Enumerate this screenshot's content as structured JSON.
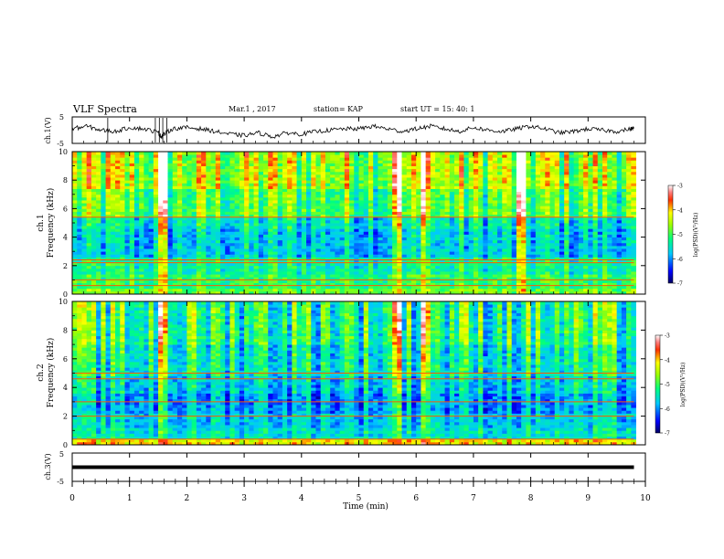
{
  "header": {
    "title": "VLF Spectra",
    "date": "Mar.1 , 2017",
    "station": "station= KAP",
    "start_ut": "start UT =  15: 40: 1"
  },
  "chart_data": [
    {
      "type": "line",
      "panel": "ch1-waveform",
      "ylabel": "ch.1(V)",
      "ylim": [
        -5,
        5
      ],
      "yticks": [
        "5",
        "-5"
      ],
      "xlim": [
        0,
        10
      ],
      "x": [
        0.0,
        0.25,
        0.5,
        0.75,
        1.0,
        1.25,
        1.5,
        1.55,
        1.6,
        1.75,
        2.0,
        2.25,
        2.5,
        2.75,
        3.0,
        3.25,
        3.5,
        3.75,
        4.0,
        4.25,
        4.5,
        4.75,
        5.0,
        5.25,
        5.5,
        5.75,
        6.0,
        6.25,
        6.5,
        6.75,
        7.0,
        7.25,
        7.5,
        7.75,
        8.0,
        8.25,
        8.5,
        8.75,
        9.0,
        9.25,
        9.5,
        9.75,
        9.8
      ],
      "values": [
        0.5,
        1.5,
        0.0,
        -0.5,
        1.0,
        0.5,
        -0.8,
        -2.5,
        -1.5,
        0.5,
        1.0,
        0.5,
        -0.5,
        -1.5,
        -2.0,
        -1.0,
        -2.5,
        -1.0,
        -1.5,
        -0.5,
        0.0,
        0.5,
        0.5,
        1.5,
        0.5,
        -0.5,
        0.5,
        1.5,
        0.5,
        -0.5,
        1.0,
        0.0,
        -0.5,
        0.5,
        1.5,
        0.5,
        -1.0,
        -0.5,
        0.5,
        0.0,
        -0.5,
        0.5,
        0.8
      ]
    },
    {
      "type": "heatmap",
      "panel": "ch1-spectrogram",
      "ylabel": "ch.1\nFrequency (kHz)",
      "ylim": [
        0,
        10
      ],
      "yticks": [
        "0",
        "2",
        "4",
        "6",
        "8",
        "10"
      ],
      "xlim": [
        0,
        10
      ],
      "colorbar": {
        "label": "log(PSD)(V²/Hz)",
        "range": [
          -7,
          -3
        ],
        "ticks": [
          "-3",
          "-4",
          "-5",
          "-6",
          "-7"
        ]
      },
      "freq_bands_khz": [
        {
          "from": 0.0,
          "to": 0.4,
          "level": 0.55
        },
        {
          "from": 0.4,
          "to": 1.5,
          "level": 0.48
        },
        {
          "from": 1.5,
          "to": 2.6,
          "level": 0.42
        },
        {
          "from": 2.6,
          "to": 4.6,
          "level": 0.32
        },
        {
          "from": 4.6,
          "to": 5.4,
          "level": 0.38
        },
        {
          "from": 5.4,
          "to": 7.5,
          "level": 0.52
        },
        {
          "from": 7.5,
          "to": 10.0,
          "level": 0.62
        }
      ],
      "lines_khz": [
        0.6,
        1.0,
        2.2,
        2.4,
        5.4
      ],
      "bursts_min": [
        1.55,
        6.2,
        7.85,
        5.7
      ]
    },
    {
      "type": "heatmap",
      "panel": "ch2-spectrogram",
      "ylabel": "ch.2\nFrequency (kHz)",
      "ylim": [
        0,
        10
      ],
      "yticks": [
        "0",
        "2",
        "4",
        "6",
        "8",
        "10"
      ],
      "xlim": [
        0,
        10
      ],
      "colorbar": {
        "label": "log(PSD)(V²/Hz)",
        "range": [
          -7,
          -3
        ],
        "ticks": [
          "-3",
          "-4",
          "-5",
          "-6",
          "-7"
        ]
      },
      "freq_bands_khz": [
        {
          "from": 0.0,
          "to": 0.4,
          "level": 0.72
        },
        {
          "from": 0.4,
          "to": 1.2,
          "level": 0.38
        },
        {
          "from": 1.2,
          "to": 2.2,
          "level": 0.33
        },
        {
          "from": 2.2,
          "to": 3.6,
          "level": 0.27
        },
        {
          "from": 3.6,
          "to": 4.8,
          "level": 0.34
        },
        {
          "from": 4.8,
          "to": 7.0,
          "level": 0.4
        },
        {
          "from": 7.0,
          "to": 10.0,
          "level": 0.46
        }
      ],
      "lines_khz": [
        0.4,
        2.0,
        3.0,
        4.6,
        5.0
      ],
      "bursts_min": [
        1.55,
        6.2,
        5.7
      ]
    },
    {
      "type": "line",
      "panel": "ch3-waveform",
      "ylabel": "ch.3(V)",
      "ylim": [
        -5,
        5
      ],
      "yticks": [
        "5",
        "-5"
      ],
      "xlim": [
        0,
        10
      ],
      "xlabel": "Time (min)",
      "xticks": [
        "0",
        "1",
        "2",
        "3",
        "4",
        "5",
        "6",
        "7",
        "8",
        "9",
        "10"
      ],
      "x": [
        0.0,
        9.8
      ],
      "values": [
        0.0,
        0.0
      ]
    }
  ]
}
